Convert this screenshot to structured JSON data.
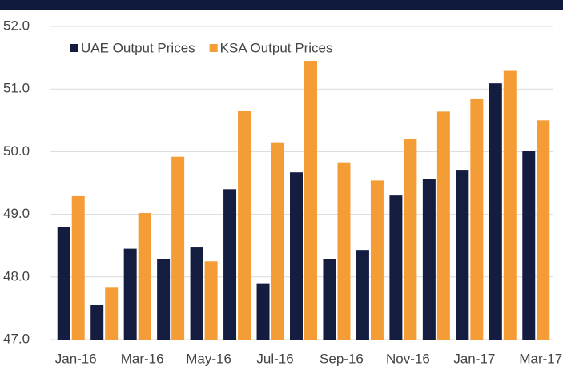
{
  "chart_data": {
    "type": "bar",
    "categories": [
      "Jan-16",
      null,
      "Mar-16",
      null,
      "May-16",
      null,
      "Jul-16",
      null,
      "Sep-16",
      null,
      "Nov-16",
      null,
      "Jan-17",
      null,
      "Mar-17"
    ],
    "series": [
      {
        "name": "UAE Output Prices",
        "color": "#141c3f",
        "values": [
          48.8,
          47.55,
          48.45,
          48.28,
          48.47,
          49.4,
          47.9,
          49.67,
          48.28,
          48.43,
          49.3,
          49.56,
          49.71,
          51.09,
          50.01
        ]
      },
      {
        "name": "KSA Output Prices",
        "color": "#f49d37",
        "values": [
          49.29,
          47.84,
          49.02,
          49.92,
          48.25,
          50.65,
          50.15,
          51.45,
          49.83,
          49.54,
          50.21,
          50.64,
          50.85,
          51.29,
          50.5
        ]
      }
    ],
    "ylim": [
      47,
      52
    ],
    "yticks": [
      {
        "value": 47,
        "label": "47.0"
      },
      {
        "value": 48,
        "label": "48.0"
      },
      {
        "value": 49,
        "label": "49.0"
      },
      {
        "value": 50,
        "label": "50.0"
      },
      {
        "value": 51,
        "label": "51.0"
      },
      {
        "value": 52,
        "label": "52.0"
      }
    ],
    "grid": true,
    "legend": "top-left"
  }
}
